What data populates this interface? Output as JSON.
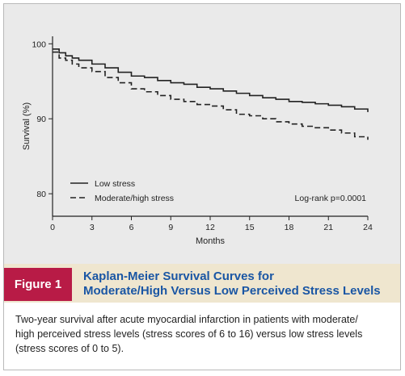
{
  "chart_data": {
    "type": "line",
    "xlabel": "Months",
    "ylabel": "Survival (%)",
    "xlim": [
      0,
      24
    ],
    "ylim": [
      77,
      101
    ],
    "x_ticks": [
      0,
      3,
      6,
      9,
      12,
      15,
      18,
      21,
      24
    ],
    "y_ticks": [
      80,
      90,
      100
    ],
    "grid": false,
    "legend_position": "bottom-left",
    "annotation": "Log-rank p=0.0001",
    "series": [
      {
        "name": "Low stress",
        "style": "solid",
        "color": "#222222",
        "x": [
          0,
          0.5,
          1,
          1.5,
          2,
          3,
          4,
          5,
          6,
          7,
          8,
          9,
          10,
          11,
          12,
          13,
          14,
          15,
          16,
          17,
          18,
          19,
          20,
          21,
          22,
          23,
          24
        ],
        "y": [
          99.3,
          98.8,
          98.4,
          98.1,
          97.8,
          97.3,
          96.8,
          96.2,
          95.7,
          95.5,
          95.1,
          94.8,
          94.6,
          94.2,
          94.0,
          93.7,
          93.4,
          93.1,
          92.8,
          92.6,
          92.3,
          92.2,
          92.0,
          91.8,
          91.6,
          91.3,
          90.9
        ]
      },
      {
        "name": "Moderate/high stress",
        "style": "dashed",
        "color": "#222222",
        "x": [
          0,
          0.5,
          1,
          1.5,
          2,
          3,
          4,
          5,
          6,
          7,
          8,
          9,
          10,
          11,
          12,
          13,
          14,
          15,
          16,
          17,
          18,
          19,
          20,
          21,
          22,
          23,
          24
        ],
        "y": [
          98.9,
          98.1,
          97.8,
          97.3,
          96.8,
          96.3,
          95.5,
          94.8,
          94.0,
          93.6,
          93.1,
          92.6,
          92.3,
          91.9,
          91.7,
          91.2,
          90.6,
          90.4,
          90.0,
          89.6,
          89.3,
          89.0,
          88.8,
          88.5,
          88.1,
          87.6,
          87.2
        ]
      }
    ]
  },
  "figure": {
    "label": "Figure 1",
    "title_lines": [
      "Kaplan-Meier Survival Curves for",
      "Moderate/High Versus Low Perceived Stress Levels"
    ],
    "caption_lines": [
      "Two-year survival after acute myocardial infarction in patients with moderate/",
      "high perceived stress levels (stress scores of 6 to 16) versus low stress levels",
      "(stress scores of 0 to 5)."
    ],
    "colors": {
      "badge": "#b81b46",
      "title": "#1a56a4",
      "caption_bar": "#efe6cf",
      "plot_panel": "#eaeaea"
    }
  }
}
